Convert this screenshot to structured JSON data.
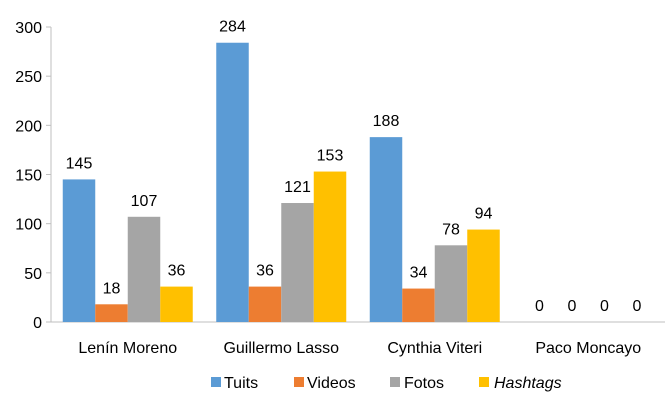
{
  "chart_data": {
    "type": "bar",
    "categories": [
      "Lenín Moreno",
      "Guillermo Lasso",
      "Cynthia Viteri",
      "Paco Moncayo"
    ],
    "series": [
      {
        "name": "Tuits",
        "values": [
          145,
          284,
          188,
          0
        ],
        "color": "#5B9BD5"
      },
      {
        "name": "Videos",
        "values": [
          18,
          36,
          34,
          0
        ],
        "color": "#ED7D31"
      },
      {
        "name": "Fotos",
        "values": [
          107,
          121,
          78,
          0
        ],
        "color": "#A5A5A5"
      },
      {
        "name": "Hashtags",
        "values": [
          36,
          153,
          94,
          0
        ],
        "color": "#FFC000",
        "italic": true
      }
    ],
    "ylim": [
      0,
      300
    ],
    "yticks": [
      0,
      50,
      100,
      150,
      200,
      250,
      300
    ],
    "data_labels": true,
    "grid": false,
    "legend_position": "bottom",
    "title": "",
    "xlabel": "",
    "ylabel": ""
  }
}
